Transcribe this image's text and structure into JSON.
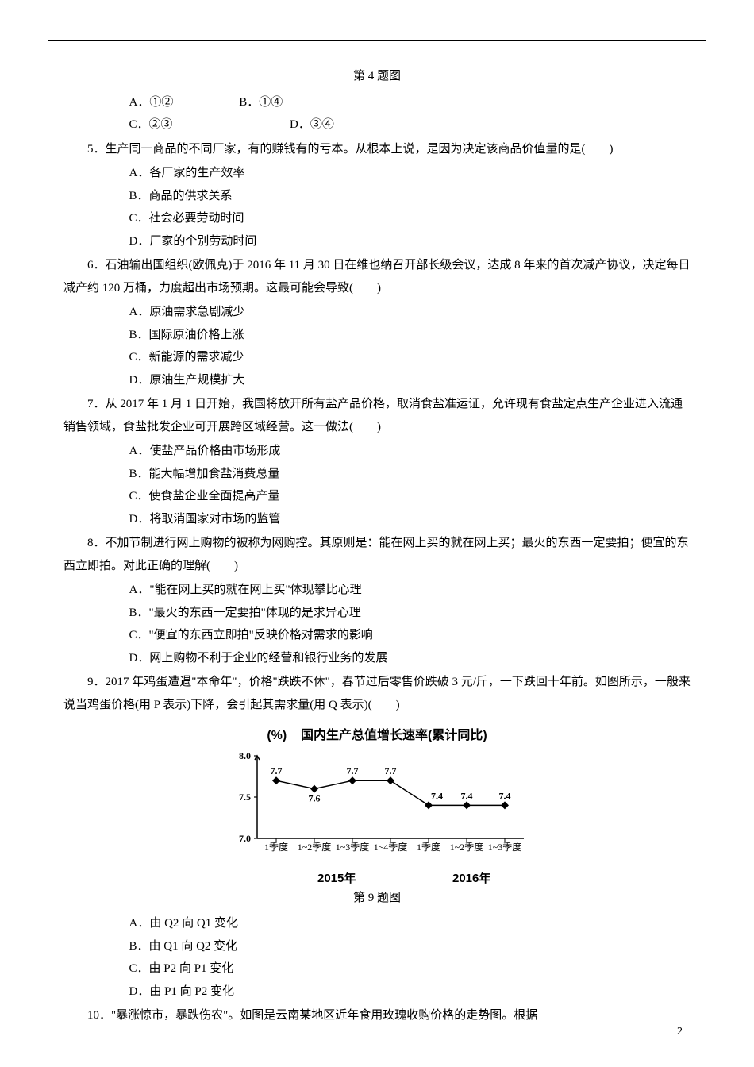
{
  "caption4": "第 4 题图",
  "caption9": "第 9 题图",
  "q4opts": {
    "A": "A．①②",
    "B": "B．①④",
    "C": "C．②③",
    "D": "D．③④"
  },
  "q5": {
    "stem": "5．生产同一商品的不同厂家，有的赚钱有的亏本。从根本上说，是因为决定该商品价值量的是(　　)",
    "A": "A．各厂家的生产效率",
    "B": "B．商品的供求关系",
    "C": "C．社会必要劳动时间",
    "D": "D．厂家的个别劳动时间"
  },
  "q6": {
    "stem": "6．石油输出国组织(欧佩克)于 2016 年 11 月 30 日在维也纳召开部长级会议，达成 8 年来的首次减产协议，决定每日减产约 120 万桶，力度超出市场预期。这最可能会导致(　　)",
    "A": "A．原油需求急剧减少",
    "B": "B．国际原油价格上涨",
    "C": "C．新能源的需求减少",
    "D": "D．原油生产规模扩大"
  },
  "q7": {
    "stem": "7．从 2017 年 1 月 1 日开始，我国将放开所有盐产品价格，取消食盐准运证，允许现有食盐定点生产企业进入流通销售领域，食盐批发企业可开展跨区域经营。这一做法(　　)",
    "A": "A．使盐产品价格由市场形成",
    "B": "B．能大幅增加食盐消费总量",
    "C": "C．使食盐企业全面提高产量",
    "D": "D．将取消国家对市场的监管"
  },
  "q8": {
    "stem": "8．不加节制进行网上购物的被称为网购控。其原则是：能在网上买的就在网上买；最火的东西一定要拍；便宜的东西立即拍。对此正确的理解(　　)",
    "A": "A．\"能在网上买的就在网上买\"体现攀比心理",
    "B": "B．\"最火的东西一定要拍\"体现的是求异心理",
    "C": "C．\"便宜的东西立即拍\"反映价格对需求的影响",
    "D": "D．网上购物不利于企业的经营和银行业务的发展"
  },
  "q9": {
    "stem": "9．2017 年鸡蛋遭遇\"本命年\"，价格\"跌跌不休\"，春节过后零售价跌破 3 元/斤，一下跌回十年前。如图所示，一般来说当鸡蛋价格(用 P 表示)下降，会引起其需求量(用 Q 表示)(　　)",
    "A": "A．由 Q2 向 Q1 变化",
    "B": "B．由 Q1 向 Q2 变化",
    "C": "C．由 P2 向 P1 变化",
    "D": "D．由 P1 向 P2 变化"
  },
  "q10": {
    "stem": "10．\"暴涨惊市，暴跌伤农\"。如图是云南某地区近年食用玫瑰收购价格的走势图。根据"
  },
  "chart": {
    "type": "line",
    "title": "国内生产总值增长速率(累计同比)",
    "y_unit": "(%)",
    "values": [
      7.7,
      7.6,
      7.7,
      7.7,
      7.4,
      7.4,
      7.4
    ],
    "value_labels": [
      "7.7",
      "7.6",
      "7.7",
      "7.7",
      "7.4",
      "7.4",
      "7.4"
    ],
    "categories": [
      "1季度",
      "1~2季度",
      "1~3季度",
      "1~4季度",
      "1季度",
      "1~2季度",
      "1~3季度"
    ],
    "year_labels": [
      "2015年",
      "2016年"
    ],
    "yticks": [
      7.0,
      7.5,
      8.0
    ],
    "ylim": [
      7.0,
      8.0
    ],
    "line_color": "#000000",
    "marker_fill": "#000000",
    "marker_shape": "diamond",
    "marker_size": 5,
    "line_width": 1.5,
    "axis_color": "#000000",
    "background_color": "#ffffff",
    "tick_fontsize": 11,
    "value_fontsize": 14,
    "value_fontweight": "bold",
    "title_fontsize": 16
  },
  "pagenum": "2"
}
